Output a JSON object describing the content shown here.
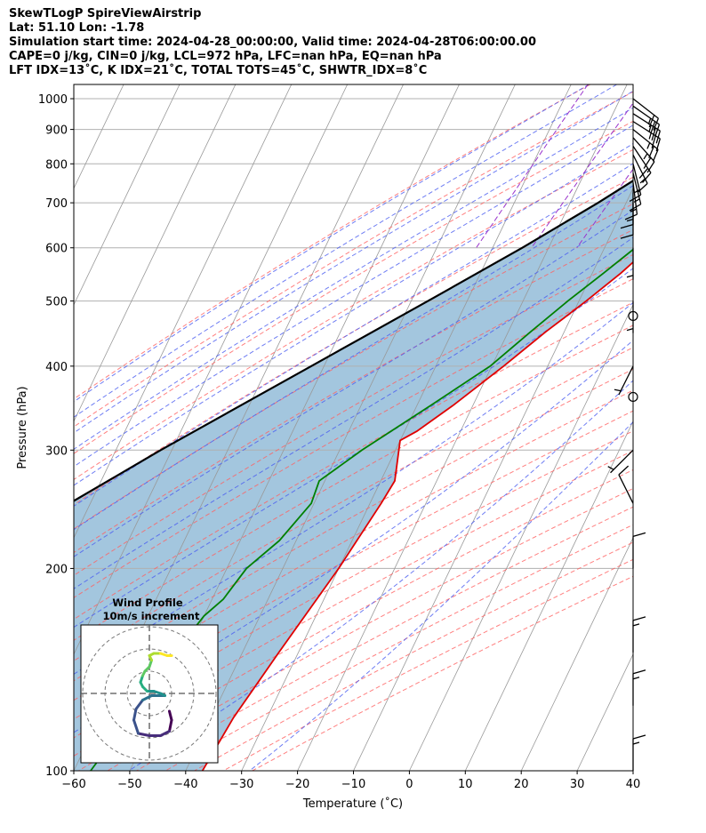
{
  "titles": [
    "SkewTLogP SpireViewAirstrip",
    "Lat: 51.10   Lon: -1.78",
    "Simulation start time: 2024-04-28_00:00:00, Valid time: 2024-04-28T06:00:00.00",
    "CAPE=0 j/kg, CIN=0 j/kg, LCL=972 hPa, LFC=nan hPa, EQ=nan hPa",
    "LFT IDX=13˚C, K IDX=21˚C, TOTAL TOTS=45˚C, SHWTR_IDX=8˚C"
  ],
  "chart_data": {
    "type": "skewt",
    "xlabel": "Temperature (˚C)",
    "ylabel": "Pressure (hPa)",
    "xlim": [
      -60,
      40
    ],
    "ylim": [
      1050,
      100
    ],
    "x_ticks": [
      -60,
      -50,
      -40,
      -30,
      -20,
      -10,
      0,
      10,
      20,
      30,
      40
    ],
    "x_tick_labels": [
      "−60",
      "−50",
      "−40",
      "−30",
      "−20",
      "−10",
      "0",
      "10",
      "20",
      "30",
      "40"
    ],
    "y_ticks": [
      1000,
      900,
      800,
      700,
      600,
      500,
      400,
      300,
      200,
      100
    ],
    "y_tick_labels": [
      "1000",
      "900",
      "800",
      "700",
      "600",
      "500",
      "400",
      "300",
      "200",
      "100"
    ],
    "grid": true,
    "colors": {
      "temperature": "#e00000",
      "dewpoint": "#008000",
      "parcel": "#000000",
      "shade": "#a3c6de",
      "dry_adiabat": "#ff6060",
      "moist_adiabat": "#4a5cf0",
      "mixing_ratio": "#9933cc",
      "isotherm": "#999999"
    },
    "temperature": [
      {
        "p": 987,
        "t": 4.5
      },
      {
        "p": 900,
        "t": 3.6
      },
      {
        "p": 850,
        "t": 3.8
      },
      {
        "p": 800,
        "t": 3.8
      },
      {
        "p": 750,
        "t": 3.5
      },
      {
        "p": 700,
        "t": 2.0
      },
      {
        "p": 650,
        "t": 0.4
      },
      {
        "p": 600,
        "t": -2.0
      },
      {
        "p": 550,
        "t": -4.9
      },
      {
        "p": 500,
        "t": -8.7
      },
      {
        "p": 450,
        "t": -13.3
      },
      {
        "p": 400,
        "t": -17.9
      },
      {
        "p": 350,
        "t": -23.5
      },
      {
        "p": 320,
        "t": -27.8
      },
      {
        "p": 310,
        "t": -30.0
      },
      {
        "p": 270,
        "t": -27.5
      },
      {
        "p": 250,
        "t": -28.0
      },
      {
        "p": 200,
        "t": -30.0
      },
      {
        "p": 150,
        "t": -33.5
      },
      {
        "p": 120,
        "t": -36.0
      },
      {
        "p": 100,
        "t": -37.0
      }
    ],
    "dewpoint": [
      {
        "p": 987,
        "t": 3.0
      },
      {
        "p": 950,
        "t": 3.5
      },
      {
        "p": 900,
        "t": 3.4
      },
      {
        "p": 860,
        "t": 3.8
      },
      {
        "p": 800,
        "t": 3.0
      },
      {
        "p": 750,
        "t": 2.0
      },
      {
        "p": 700,
        "t": 0.0
      },
      {
        "p": 650,
        "t": -2.0
      },
      {
        "p": 600,
        "t": -4.5
      },
      {
        "p": 550,
        "t": -8.0
      },
      {
        "p": 500,
        "t": -12.0
      },
      {
        "p": 450,
        "t": -16.0
      },
      {
        "p": 400,
        "t": -20.3
      },
      {
        "p": 350,
        "t": -27.5
      },
      {
        "p": 300,
        "t": -36.0
      },
      {
        "p": 270,
        "t": -41.0
      },
      {
        "p": 250,
        "t": -40.5
      },
      {
        "p": 220,
        "t": -43.0
      },
      {
        "p": 200,
        "t": -46.5
      },
      {
        "p": 180,
        "t": -48.0
      },
      {
        "p": 170,
        "t": -50.0
      },
      {
        "p": 150,
        "t": -52.0
      },
      {
        "p": 120,
        "t": -54.5
      },
      {
        "p": 100,
        "t": -57.0
      }
    ],
    "parcel": [
      {
        "p": 987,
        "t": 4.5
      },
      {
        "p": 972,
        "t": 3.3
      },
      {
        "p": 900,
        "t": -0.9
      },
      {
        "p": 800,
        "t": -7.3
      },
      {
        "p": 700,
        "t": -15.0
      },
      {
        "p": 600,
        "t": -24.7
      },
      {
        "p": 500,
        "t": -37.0
      },
      {
        "p": 400,
        "t": -52.3
      },
      {
        "p": 300,
        "t": -72.0
      },
      {
        "p": 250,
        "t": -83.7
      },
      {
        "p": 200,
        "t": -96.8
      },
      {
        "p": 150,
        "t": -111.8
      },
      {
        "p": 100,
        "t": -130.0
      }
    ],
    "wind_barbs": [
      {
        "p": 1000,
        "u": -9,
        "v": 7
      },
      {
        "p": 975,
        "u": -10,
        "v": 7
      },
      {
        "p": 950,
        "u": -11,
        "v": 7
      },
      {
        "p": 925,
        "u": -11,
        "v": 7
      },
      {
        "p": 900,
        "u": -10,
        "v": 8
      },
      {
        "p": 875,
        "u": -8,
        "v": 9
      },
      {
        "p": 850,
        "u": -6,
        "v": 9
      },
      {
        "p": 825,
        "u": -4,
        "v": 8
      },
      {
        "p": 800,
        "u": -2,
        "v": 8
      },
      {
        "p": 775,
        "u": -2,
        "v": 8
      },
      {
        "p": 750,
        "u": -1,
        "v": 8
      },
      {
        "p": 725,
        "u": 0,
        "v": 8
      },
      {
        "p": 700,
        "u": 0,
        "v": 6
      },
      {
        "p": 600,
        "u": 0,
        "v": 3
      },
      {
        "p": 500,
        "u": 0,
        "v": 2
      },
      {
        "p": 400,
        "u": 1,
        "v": 2
      },
      {
        "p": 300,
        "u": 2,
        "v": 2
      },
      {
        "p": 250,
        "u": 2,
        "v": -4
      },
      {
        "p": 200,
        "u": 0,
        "v": -6
      },
      {
        "p": 150,
        "u": 0,
        "v": -8
      },
      {
        "p": 125,
        "u": 0,
        "v": -8
      },
      {
        "p": 100,
        "u": 0,
        "v": -7
      }
    ],
    "calm_barbs": [
      475,
      360
    ],
    "hodograph": {
      "title": "Wind Profile",
      "subtitle": "10m/s increment",
      "ring_step": 10,
      "rings": 3,
      "points": [
        {
          "u": 9,
          "v": -8
        },
        {
          "u": 10,
          "v": -12
        },
        {
          "u": 9,
          "v": -17
        },
        {
          "u": 5,
          "v": -19
        },
        {
          "u": 0,
          "v": -19
        },
        {
          "u": -5,
          "v": -18
        },
        {
          "u": -7,
          "v": -12
        },
        {
          "u": -6,
          "v": -7
        },
        {
          "u": -3,
          "v": -3
        },
        {
          "u": 1,
          "v": -1
        },
        {
          "u": 4,
          "v": -1
        },
        {
          "u": 7,
          "v": -1
        },
        {
          "u": 5,
          "v": 0
        },
        {
          "u": 2,
          "v": 1
        },
        {
          "u": -1,
          "v": 1
        },
        {
          "u": -3,
          "v": 3
        },
        {
          "u": -4,
          "v": 5
        },
        {
          "u": -3,
          "v": 8
        },
        {
          "u": -2,
          "v": 10
        },
        {
          "u": 0,
          "v": 12
        },
        {
          "u": 1,
          "v": 15
        },
        {
          "u": 0,
          "v": 17
        },
        {
          "u": 2,
          "v": 18
        },
        {
          "u": 5,
          "v": 18
        },
        {
          "u": 8,
          "v": 17
        },
        {
          "u": 10,
          "v": 17
        }
      ]
    }
  }
}
